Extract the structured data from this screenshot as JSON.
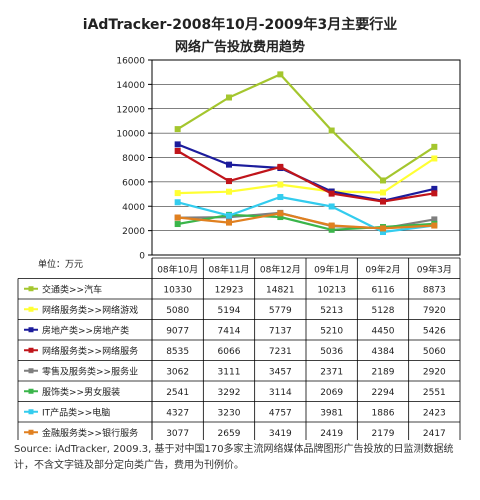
{
  "title_line1": "iAdTracker-2008年10月-2009年3月主要行业",
  "title_line2": "网络广告投放费用趋势",
  "chart_data": {
    "type": "line",
    "ylabel": "单位：万元",
    "ylim": [
      0,
      16000
    ],
    "yticks": [
      0,
      2000,
      4000,
      6000,
      8000,
      10000,
      12000,
      14000,
      16000
    ],
    "categories": [
      "08年10月",
      "08年11月",
      "08年12月",
      "09年1月",
      "09年2月",
      "09年3月"
    ],
    "grid": true,
    "legend_position": "table-below",
    "series": [
      {
        "name": "交通类>>汽车",
        "color": "#a4c62e",
        "values": [
          10330,
          12923,
          14821,
          10213,
          6116,
          8873
        ]
      },
      {
        "name": "网络服务类>>网络游戏",
        "color": "#ffff33",
        "values": [
          5080,
          5194,
          5779,
          5213,
          5128,
          7920
        ]
      },
      {
        "name": "房地产类>>房地产类",
        "color": "#1c1c9c",
        "values": [
          9077,
          7414,
          7137,
          5210,
          4450,
          5426
        ]
      },
      {
        "name": "网络服务类>>网络服务",
        "color": "#c0141a",
        "values": [
          8535,
          6066,
          7231,
          5036,
          4384,
          5060
        ]
      },
      {
        "name": "零售及服务类>>服务业",
        "color": "#7f7f7f",
        "values": [
          3062,
          3111,
          3457,
          2371,
          2189,
          2920
        ]
      },
      {
        "name": "服饰类>>男女服装",
        "color": "#3ab54a",
        "values": [
          2541,
          3292,
          3114,
          2069,
          2294,
          2551
        ]
      },
      {
        "name": "IT产品类>>电脑",
        "color": "#33ccee",
        "values": [
          4327,
          3230,
          4757,
          3981,
          1886,
          2423
        ]
      },
      {
        "name": "金融服务类>>银行服务",
        "color": "#e08020",
        "values": [
          3077,
          2659,
          3419,
          2419,
          2179,
          2417
        ]
      }
    ]
  },
  "source_note": "Source: iAdTracker, 2009.3, 基于对中国170多家主流网络媒体品牌图形广告投放的日监测数据统计，不含文字链及部分定向类广告，费用为刊例价。"
}
